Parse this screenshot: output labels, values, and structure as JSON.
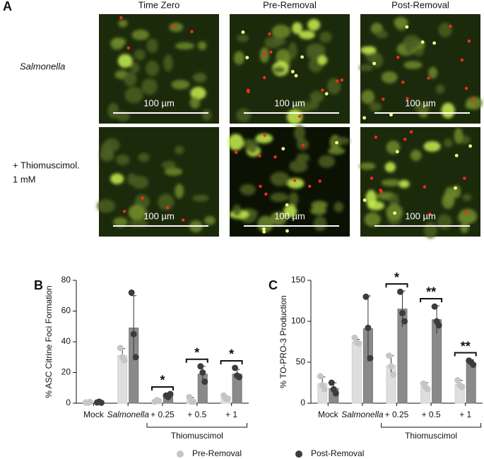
{
  "panel_a": {
    "label": "A",
    "columns": [
      "Time Zero",
      "Pre-Removal",
      "Post-Removal"
    ],
    "rows": [
      {
        "label": [
          "Salmonella"
        ]
      },
      {
        "label": [
          "+ Thiomuscimol.",
          "1 mM"
        ]
      }
    ],
    "scale_bars": [
      "100 µm",
      "100 µm",
      "100 µm",
      "100 µm",
      "100 µm",
      "100 µm"
    ]
  },
  "chart_data": [
    {
      "type": "bar",
      "panel": "B",
      "ylabel": "% ASC Citrine Foci Formation",
      "categories": [
        "Mock",
        "Salmonella",
        "+ 0.25",
        "+ 0.5",
        "+ 1"
      ],
      "group": {
        "label": "Thiomuscimol",
        "categories": [
          "+ 0.25",
          "+ 0.5",
          "+ 1"
        ]
      },
      "ylim": [
        0,
        80
      ],
      "yticks": [
        0,
        20,
        40,
        60,
        80
      ],
      "significance": [
        null,
        null,
        "*",
        "*",
        "*"
      ],
      "series": [
        {
          "name": "Pre-Removal",
          "color": "#dedede",
          "point_color": "#c6c6c6",
          "values": [
            0.5,
            31,
            1.5,
            2,
            3.5
          ],
          "errors": [
            0.3,
            4.5,
            0.5,
            1.7,
            1.2
          ],
          "points": [
            [
              0.5,
              0.3,
              0.8
            ],
            [
              36,
              30,
              28
            ],
            [
              1,
              2,
              1.5
            ],
            [
              4,
              1,
              1
            ],
            [
              5,
              3,
              3
            ]
          ]
        },
        {
          "name": "Post-Removal",
          "color": "#8a8a8a",
          "point_color": "#3c3c3c",
          "values": [
            0.5,
            49,
            5,
            19,
            19
          ],
          "errors": [
            0.4,
            21,
            1,
            5,
            3
          ],
          "points": [
            [
              0.5,
              1,
              0.3
            ],
            [
              72,
              45,
              30
            ],
            [
              5,
              4,
              6
            ],
            [
              24,
              20,
              14
            ],
            [
              23,
              18,
              17
            ]
          ]
        }
      ]
    },
    {
      "type": "bar",
      "panel": "C",
      "ylabel": "% TO-PRO-3 Production",
      "categories": [
        "Mock",
        "Salmonella",
        "+ 0.25",
        "+ 0.5",
        "+ 1"
      ],
      "group": {
        "label": "Thiomuscimol",
        "categories": [
          "+ 0.25",
          "+ 0.5",
          "+ 1"
        ]
      },
      "ylim": [
        0,
        150
      ],
      "yticks": [
        0,
        50,
        100,
        150
      ],
      "significance": [
        null,
        null,
        "*",
        "**",
        "**"
      ],
      "series": [
        {
          "name": "Pre-Removal",
          "color": "#dedede",
          "point_color": "#c6c6c6",
          "values": [
            24,
            75,
            46,
            20,
            23
          ],
          "errors": [
            8,
            3,
            12,
            5,
            5
          ],
          "points": [
            [
              33,
              22,
              17
            ],
            [
              80,
              74,
              73
            ],
            [
              58,
              45,
              35
            ],
            [
              24,
              20,
              17
            ],
            [
              28,
              22,
              20
            ]
          ]
        },
        {
          "name": "Post-Removal",
          "color": "#8a8a8a",
          "point_color": "#3c3c3c",
          "values": [
            18,
            91,
            115,
            102,
            49
          ],
          "errors": [
            7,
            40,
            22,
            17,
            4
          ],
          "points": [
            [
              25,
              17,
              12
            ],
            [
              130,
              92,
              55
            ],
            [
              136,
              110,
              100
            ],
            [
              118,
              100,
              95
            ],
            [
              52,
              50,
              47
            ]
          ]
        }
      ]
    }
  ]
}
